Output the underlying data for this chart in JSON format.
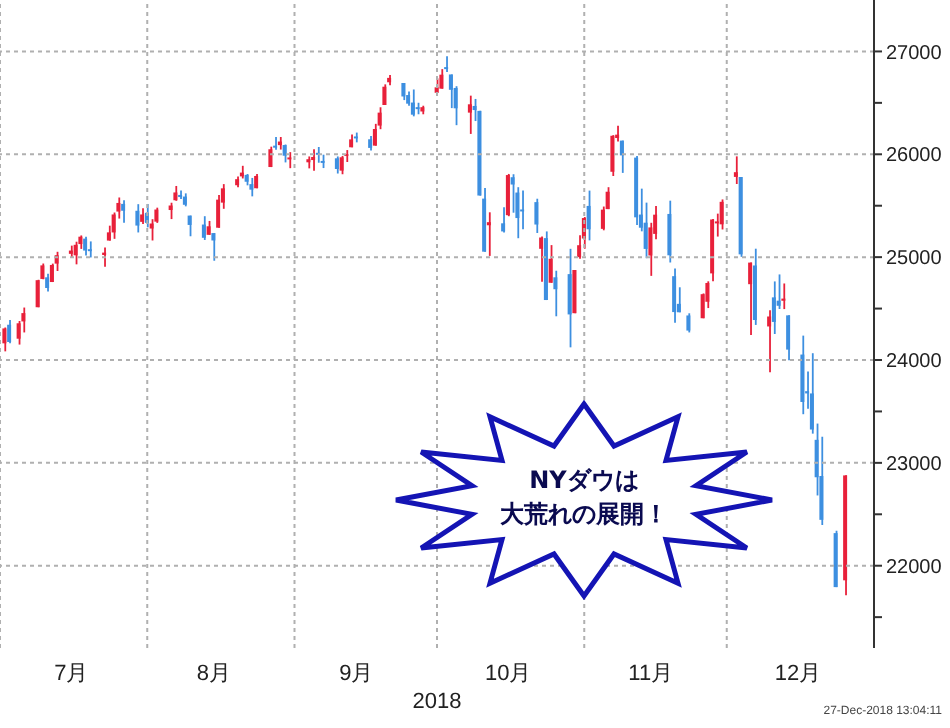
{
  "chart_data": {
    "type": "candlestick",
    "xlabel": "2018",
    "colors": [
      "#e8203a",
      "#3d8fe0",
      "#e8203a",
      "#e8203a",
      "#e8203a",
      "#e8203a",
      "#3d8fe0",
      "#e8203a",
      "#e8203a",
      "#e8203a",
      "#e8203a",
      "#e8203a",
      "#3d8fe0",
      "#3d8fe0",
      "#e8203a",
      "#e8203a",
      "#e8203a",
      "#e8203a",
      "#3d8fe0",
      "#3d8fe0",
      "#e8203a",
      "#3d8fe0",
      "#e8203a",
      "#e8203a",
      "#e8203a",
      "#e8203a",
      "#3d8fe0",
      "#3d8fe0",
      "#3d8fe0",
      "#3d8fe0",
      "#e8203a",
      "#3d8fe0",
      "#e8203a",
      "#e8203a",
      "#e8203a",
      "#e8203a",
      "#3d8fe0",
      "#3d8fe0",
      "#e8203a",
      "#e8203a",
      "#3d8fe0",
      "#e8203a",
      "#3d8fe0",
      "#e8203a",
      "#e8203a",
      "#e8203a",
      "#3d8fe0",
      "#3d8fe0",
      "#3d8fe0",
      "#e8203a",
      "#e8203a",
      "#e8203a",
      "#3d8fe0",
      "#3d8fe0",
      "#e8203a",
      "#e8203a",
      "#e8203a",
      "#e8203a",
      "#3d8fe0",
      "#3d8fe0",
      "#3d8fe0",
      "#3d8fe0",
      "#e8203a",
      "#e8203a",
      "#e8203a",
      "#3d8fe0",
      "#3d8fe0",
      "#3d8fe0",
      "#e8203a",
      "#3d8fe0",
      "#3d8fe0",
      "#3d8fe0",
      "#e8203a",
      "#3d8fe0",
      "#e8203a",
      "#3d8fe0",
      "#3d8fe0",
      "#3d8fe0",
      "#3d8fe0",
      "#e8203a",
      "#3d8fe0",
      "#e8203a",
      "#3d8fe0",
      "#3d8fe0",
      "#e8203a",
      "#e8203a",
      "#e8203a",
      "#3d8fe0",
      "#e8203a",
      "#e8203a",
      "#e8203a",
      "#e8203a",
      "#3d8fe0",
      "#3d8fe0",
      "#3d8fe0",
      "#3d8fe0",
      "#e8203a",
      "#e8203a",
      "#3d8fe0",
      "#3d8fe0",
      "#3d8fe0",
      "#3d8fe0",
      "#e8203a",
      "#e8203a",
      "#e8203a",
      "#e8203a",
      "#e8203a",
      "#e8203a",
      "#3d8fe0",
      "#e8203a",
      "#3d8fe0",
      "#e8203a",
      "#3d8fe0",
      "#3d8fe0",
      "#e8203a",
      "#3d8fe0",
      "#3d8fe0",
      "#3d8fe0",
      "#3d8fe0",
      "#3d8fe0",
      "#3d8fe0",
      "#3d8fe0",
      "#e8203a"
    ],
    "grid": true,
    "ylim": [
      21200,
      27500
    ],
    "yticks": [
      {
        "value": 21500,
        "label": null
      },
      22000,
      {
        "value": 22500,
        "label": null
      },
      23000,
      {
        "value": 23500,
        "label": null
      },
      24000,
      {
        "value": 24500,
        "label": null
      },
      25000,
      {
        "value": 25500,
        "label": null
      },
      26000,
      {
        "value": 26500,
        "label": null
      },
      27000
    ],
    "xlim": [
      "2018-07-01",
      "2019-01-01"
    ],
    "xticks": [
      {
        "value": "2018-07-01",
        "label": null
      },
      {
        "value": "2018-07-16",
        "label": "7月"
      },
      {
        "value": "2018-08-01",
        "label": null
      },
      {
        "value": "2018-08-15",
        "label": "8月"
      },
      {
        "value": "2018-09-01",
        "label": null
      },
      {
        "value": "2018-09-14",
        "label": "9月"
      },
      {
        "value": "2018-10-01",
        "label": null
      },
      {
        "value": "2018-10-16",
        "label": "10月"
      },
      {
        "value": "2018-11-01",
        "label": null
      },
      {
        "value": "2018-11-15",
        "label": "11月"
      },
      {
        "value": "2018-12-01",
        "label": null
      },
      {
        "value": "2018-12-16",
        "label": "12月"
      },
      {
        "value": "2019-01-01",
        "label": null
      }
    ],
    "annotations": [
      "NYダウは",
      "大荒れの展開！",
      "27-Dec-2018 13:04:11"
    ],
    "x": [
      "2018-07-02",
      "2018-07-03",
      "2018-07-05",
      "2018-07-06",
      "2018-07-09",
      "2018-07-10",
      "2018-07-11",
      "2018-07-12",
      "2018-07-13",
      "2018-07-16",
      "2018-07-17",
      "2018-07-18",
      "2018-07-19",
      "2018-07-20",
      "2018-07-23",
      "2018-07-24",
      "2018-07-25",
      "2018-07-26",
      "2018-07-27",
      "2018-07-30",
      "2018-07-31",
      "2018-08-01",
      "2018-08-02",
      "2018-08-03",
      "2018-08-06",
      "2018-08-07",
      "2018-08-08",
      "2018-08-09",
      "2018-08-10",
      "2018-08-13",
      "2018-08-14",
      "2018-08-15",
      "2018-08-16",
      "2018-08-17",
      "2018-08-20",
      "2018-08-21",
      "2018-08-22",
      "2018-08-23",
      "2018-08-24",
      "2018-08-27",
      "2018-08-28",
      "2018-08-29",
      "2018-08-30",
      "2018-08-31",
      "2018-09-04",
      "2018-09-05",
      "2018-09-06",
      "2018-09-07",
      "2018-09-10",
      "2018-09-11",
      "2018-09-12",
      "2018-09-13",
      "2018-09-14",
      "2018-09-17",
      "2018-09-18",
      "2018-09-19",
      "2018-09-20",
      "2018-09-21",
      "2018-09-24",
      "2018-09-25",
      "2018-09-26",
      "2018-09-27",
      "2018-09-28",
      "2018-10-01",
      "2018-10-02",
      "2018-10-03",
      "2018-10-04",
      "2018-10-05",
      "2018-10-08",
      "2018-10-09",
      "2018-10-10",
      "2018-10-11",
      "2018-10-12",
      "2018-10-15",
      "2018-10-16",
      "2018-10-17",
      "2018-10-18",
      "2018-10-19",
      "2018-10-22",
      "2018-10-23",
      "2018-10-24",
      "2018-10-25",
      "2018-10-26",
      "2018-10-29",
      "2018-10-30",
      "2018-10-31",
      "2018-11-01",
      "2018-11-02",
      "2018-11-05",
      "2018-11-06",
      "2018-11-07",
      "2018-11-08",
      "2018-11-09",
      "2018-11-12",
      "2018-11-13",
      "2018-11-14",
      "2018-11-15",
      "2018-11-16",
      "2018-11-19",
      "2018-11-20",
      "2018-11-21",
      "2018-11-23",
      "2018-11-26",
      "2018-11-27",
      "2018-11-28",
      "2018-11-29",
      "2018-11-30",
      "2018-12-03",
      "2018-12-04",
      "2018-12-06",
      "2018-12-07",
      "2018-12-10",
      "2018-12-11",
      "2018-12-12",
      "2018-12-13",
      "2018-12-14",
      "2018-12-17",
      "2018-12-18",
      "2018-12-19",
      "2018-12-20",
      "2018-12-21",
      "2018-12-24",
      "2018-12-26"
    ],
    "ohlc": [
      [
        24162,
        24316,
        24084,
        24307
      ],
      [
        24343,
        24390,
        24163,
        24175
      ],
      [
        24207,
        24379,
        24150,
        24357
      ],
      [
        24375,
        24510,
        24268,
        24456
      ],
      [
        24513,
        24780,
        24513,
        24776
      ],
      [
        24788,
        24938,
        24785,
        24920
      ],
      [
        24804,
        24838,
        24667,
        24700
      ],
      [
        24758,
        24937,
        24758,
        24924
      ],
      [
        24937,
        25052,
        24865,
        25019
      ],
      [
        25032,
        25112,
        24992,
        25064
      ],
      [
        25018,
        25150,
        24930,
        25120
      ],
      [
        25127,
        25211,
        25080,
        25199
      ],
      [
        25180,
        25199,
        25016,
        25064
      ],
      [
        25073,
        25153,
        24997,
        25058
      ],
      [
        25021,
        25093,
        24906,
        25044
      ],
      [
        25161,
        25306,
        25161,
        25241
      ],
      [
        25240,
        25434,
        25178,
        25415
      ],
      [
        25443,
        25580,
        25375,
        25527
      ],
      [
        25518,
        25552,
        25335,
        25451
      ],
      [
        25451,
        25515,
        25240,
        25307
      ],
      [
        25343,
        25476,
        25323,
        25415
      ],
      [
        25431,
        25517,
        25290,
        25333
      ],
      [
        25278,
        25369,
        25162,
        25327
      ],
      [
        25345,
        25481,
        25333,
        25463
      ],
      [
        25458,
        25529,
        25370,
        25502
      ],
      [
        25553,
        25692,
        25548,
        25629
      ],
      [
        25605,
        25647,
        25565,
        25584
      ],
      [
        25589,
        25620,
        25494,
        25509
      ],
      [
        25404,
        25404,
        25203,
        25313
      ],
      [
        25317,
        25398,
        25167,
        25188
      ],
      [
        25217,
        25352,
        25217,
        25300
      ],
      [
        25234,
        25234,
        24965,
        25162
      ],
      [
        25286,
        25605,
        25286,
        25559
      ],
      [
        25530,
        25710,
        25470,
        25669
      ],
      [
        25699,
        25785,
        25679,
        25758
      ],
      [
        25785,
        25888,
        25765,
        25822
      ],
      [
        25800,
        25808,
        25698,
        25733
      ],
      [
        25710,
        25770,
        25591,
        25656
      ],
      [
        25670,
        25809,
        25670,
        25790
      ],
      [
        25876,
        26074,
        25876,
        26049
      ],
      [
        26084,
        26167,
        26043,
        26064
      ],
      [
        26089,
        26168,
        26046,
        26124
      ],
      [
        26090,
        26095,
        25921,
        25986
      ],
      [
        25950,
        26021,
        25865,
        25965
      ],
      [
        25922,
        25979,
        25863,
        25952
      ],
      [
        25944,
        26048,
        25840,
        25974
      ],
      [
        25999,
        26071,
        25918,
        25995
      ],
      [
        25928,
        25996,
        25866,
        25916
      ],
      [
        25961,
        25979,
        25813,
        25857
      ],
      [
        25841,
        25983,
        25806,
        25971
      ],
      [
        25983,
        26041,
        25925,
        25998
      ],
      [
        26068,
        26193,
        26068,
        26145
      ],
      [
        26172,
        26211,
        26116,
        26154
      ],
      [
        26146,
        26177,
        26036,
        26062
      ],
      [
        26084,
        26296,
        26084,
        26246
      ],
      [
        26279,
        26457,
        26244,
        26405
      ],
      [
        26479,
        26680,
        26479,
        26657
      ],
      [
        26700,
        26770,
        26670,
        26743
      ],
      [
        26693,
        26693,
        26527,
        26562
      ],
      [
        26576,
        26611,
        26471,
        26492
      ],
      [
        26503,
        26630,
        26369,
        26385
      ],
      [
        26458,
        26501,
        26389,
        26439
      ],
      [
        26416,
        26472,
        26389,
        26458
      ],
      [
        26598,
        26738,
        26598,
        26651
      ],
      [
        26638,
        26828,
        26638,
        26774
      ],
      [
        26833,
        26952,
        26799,
        26828
      ],
      [
        26776,
        26776,
        26449,
        26627
      ],
      [
        26645,
        26662,
        26283,
        26447
      ],
      [
        26405,
        26570,
        26198,
        26486
      ],
      [
        26470,
        26538,
        26323,
        26430
      ],
      [
        26422,
        26423,
        25598,
        25599
      ],
      [
        25569,
        25672,
        25052,
        25053
      ],
      [
        25310,
        25436,
        25012,
        25340
      ],
      [
        25329,
        25485,
        25239,
        25250
      ],
      [
        25408,
        25809,
        25398,
        25798
      ],
      [
        25777,
        25806,
        25432,
        25706
      ],
      [
        25628,
        25680,
        25184,
        25380
      ],
      [
        25454,
        25648,
        25271,
        25444
      ],
      [
        25535,
        25568,
        25235,
        25317
      ],
      [
        25081,
        25200,
        24760,
        25191
      ],
      [
        25185,
        25250,
        24583,
        24583
      ],
      [
        24751,
        25117,
        24751,
        24984
      ],
      [
        24804,
        24868,
        24425,
        24688
      ],
      [
        24835,
        25081,
        24123,
        24443
      ],
      [
        24455,
        24875,
        24455,
        24875
      ],
      [
        25000,
        25213,
        24984,
        25116
      ],
      [
        25181,
        25390,
        25082,
        25380
      ],
      [
        25498,
        25647,
        25163,
        25271
      ],
      [
        25275,
        25492,
        25261,
        25462
      ],
      [
        25467,
        25680,
        25467,
        25636
      ],
      [
        25830,
        26186,
        25789,
        26180
      ],
      [
        26158,
        26277,
        26124,
        26191
      ],
      [
        26133,
        26133,
        25819,
        25989
      ],
      [
        25968,
        25983,
        25313,
        25387
      ],
      [
        25414,
        25666,
        25251,
        25286
      ],
      [
        25335,
        25530,
        24990,
        25080
      ],
      [
        25016,
        25334,
        24818,
        25289
      ],
      [
        25226,
        25497,
        25175,
        25413
      ],
      [
        25420,
        25549,
        24948,
        25018
      ],
      [
        24815,
        24890,
        24362,
        24466
      ],
      [
        24546,
        24707,
        24464,
        24464
      ],
      [
        24433,
        24454,
        24268,
        24286
      ],
      [
        24406,
        24647,
        24406,
        24640
      ],
      [
        24566,
        24765,
        24505,
        24749
      ],
      [
        24842,
        25370,
        24765,
        25366
      ],
      [
        25328,
        25423,
        25200,
        25339
      ],
      [
        25319,
        25561,
        25269,
        25538
      ],
      [
        25780,
        25980,
        25711,
        25826
      ],
      [
        25779,
        25779,
        25003,
        25027
      ],
      [
        24737,
        24947,
        24242,
        24947
      ],
      [
        24919,
        25082,
        24341,
        24389
      ],
      [
        24326,
        24483,
        23881,
        24423
      ],
      [
        24609,
        24764,
        24253,
        24370
      ],
      [
        24577,
        24832,
        24496,
        24527
      ],
      [
        24576,
        24744,
        24495,
        24597
      ],
      [
        24434,
        24434,
        23997,
        24101
      ],
      [
        24053,
        24237,
        23473,
        23592
      ],
      [
        23697,
        23887,
        23526,
        23675
      ],
      [
        23675,
        24066,
        23284,
        23324
      ],
      [
        23224,
        23382,
        22683,
        22860
      ],
      [
        22872,
        23254,
        22396,
        22446
      ],
      [
        22317,
        22340,
        21792,
        21792
      ],
      [
        21858,
        22879,
        21712,
        22878
      ]
    ]
  }
}
